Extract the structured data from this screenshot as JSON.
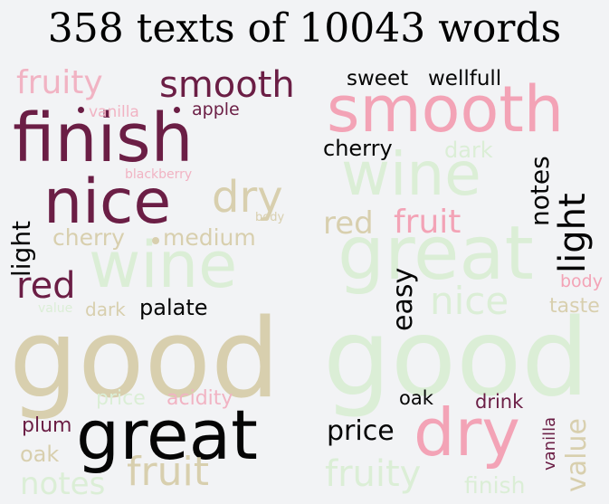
{
  "title": "358 texts of 10043 words",
  "colors": {
    "background": "#f2f3f5",
    "dark_maroon": "#6b1e45",
    "black": "#050505",
    "tan": "#d8cfae",
    "light_pink": "#f1b3c3",
    "pale_green": "#dbeed6",
    "rose": "#f3a3b6"
  },
  "left_cloud": {
    "words": [
      "good",
      "great",
      "finish",
      "nice",
      "wine",
      "smooth",
      "fruity",
      "dry",
      "fruit",
      "light",
      "red",
      "cherry",
      "medium",
      "vanilla",
      "apple",
      "blackberry",
      "body",
      "dark",
      "palate",
      "value",
      "price",
      "acidity",
      "plum",
      "oak",
      "notes"
    ]
  },
  "right_cloud": {
    "words": [
      "good",
      "great",
      "smooth",
      "wine",
      "dry",
      "light",
      "fruit",
      "red",
      "notes",
      "nice",
      "easy",
      "cherry",
      "dark",
      "sweet",
      "wellfull",
      "body",
      "taste",
      "oak",
      "price",
      "drink",
      "vanilla",
      "value",
      "fruity",
      "finish"
    ]
  }
}
